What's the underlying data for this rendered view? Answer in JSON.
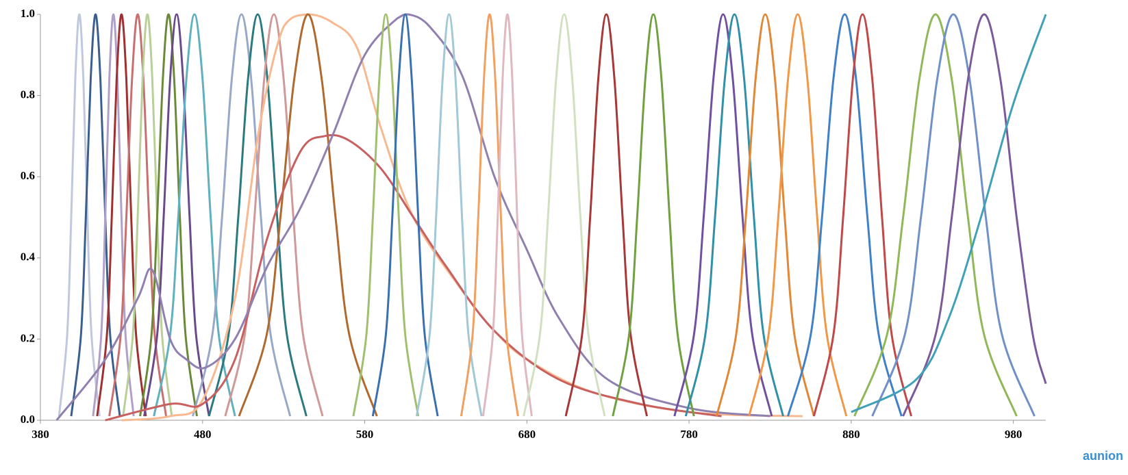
{
  "chart_data": {
    "type": "line",
    "xlim": [
      380,
      1000
    ],
    "xticks": [
      380,
      480,
      580,
      680,
      780,
      880,
      980
    ],
    "ylim": [
      0,
      1
    ],
    "yticks": [
      {
        "value": 0,
        "label": "0.0"
      },
      {
        "value": 0.2,
        "label": "0.2"
      },
      {
        "value": 0.4,
        "label": "0.4"
      },
      {
        "value": 0.6,
        "label": "0.6"
      },
      {
        "value": 0.8,
        "label": "0.8"
      },
      {
        "value": 1,
        "label": "1.0"
      }
    ],
    "grid": false,
    "watermark": "aunion",
    "series": [
      {
        "color": "#c0c8e0",
        "x": [
          391.5,
          396.5,
          399,
          401.5,
          404,
          406.5,
          409,
          411.5,
          416.5
        ],
        "values": [
          0.01,
          0.21,
          0.5,
          0.84,
          1,
          0.84,
          0.5,
          0.21,
          0.01
        ]
      },
      {
        "color": "#3a5f8f",
        "x": [
          399,
          405,
          408,
          411,
          414,
          417,
          420,
          423,
          429
        ],
        "values": [
          0.01,
          0.21,
          0.5,
          0.84,
          1,
          0.84,
          0.5,
          0.21,
          0.01
        ]
      },
      {
        "color": "#b0a0c8",
        "x": [
          412.5,
          417.5,
          420,
          422.5,
          425,
          427.5,
          430,
          432.5,
          437.5
        ],
        "values": [
          0.01,
          0.21,
          0.5,
          0.84,
          1,
          0.84,
          0.5,
          0.21,
          0.01
        ]
      },
      {
        "color": "#a03030",
        "x": [
          415,
          421,
          424,
          427,
          430,
          433,
          436,
          439,
          445
        ],
        "values": [
          0.01,
          0.21,
          0.5,
          0.84,
          1,
          0.84,
          0.5,
          0.21,
          0.01
        ]
      },
      {
        "color": "#c87070",
        "x": [
          422.5,
          429.5,
          433,
          436.5,
          440,
          443.5,
          447,
          450.5,
          457.5
        ],
        "values": [
          0.01,
          0.21,
          0.5,
          0.84,
          1,
          0.84,
          0.5,
          0.21,
          0.01
        ]
      },
      {
        "color": "#b8d098",
        "x": [
          431,
          437,
          440,
          443,
          446,
          449,
          452,
          455,
          461
        ],
        "values": [
          0.01,
          0.21,
          0.5,
          0.84,
          1,
          0.84,
          0.5,
          0.21,
          0.01
        ]
      },
      {
        "color": "#6a8a3a",
        "x": [
          441.5,
          448.5,
          452,
          455.5,
          459,
          462.5,
          466,
          469.5,
          476.5
        ],
        "values": [
          0.01,
          0.21,
          0.5,
          0.84,
          1,
          0.84,
          0.5,
          0.21,
          0.01
        ]
      },
      {
        "color": "#6a4a8a",
        "x": [
          444,
          452,
          456,
          460,
          464,
          468,
          472,
          476,
          484
        ],
        "values": [
          0.01,
          0.21,
          0.5,
          0.84,
          1,
          0.84,
          0.5,
          0.21,
          0.01
        ]
      },
      {
        "color": "#60b0c0",
        "x": [
          450,
          460,
          465,
          470,
          475,
          480,
          485,
          490,
          500
        ],
        "values": [
          0.01,
          0.21,
          0.5,
          0.84,
          1,
          0.84,
          0.5,
          0.21,
          0.01
        ]
      },
      {
        "color": "#98a8c8",
        "x": [
          474,
          486,
          492,
          498,
          504,
          510,
          516,
          522,
          534
        ],
        "values": [
          0.01,
          0.21,
          0.5,
          0.84,
          1,
          0.84,
          0.5,
          0.21,
          0.01
        ]
      },
      {
        "color": "#2a7a80",
        "x": [
          484,
          496,
          502,
          508,
          514,
          520,
          526,
          532,
          544
        ],
        "values": [
          0.01,
          0.21,
          0.5,
          0.84,
          1,
          0.84,
          0.5,
          0.21,
          0.01
        ]
      },
      {
        "color": "#d09898",
        "x": [
          494,
          506,
          512,
          518,
          524,
          530,
          536,
          542,
          554
        ],
        "values": [
          0.01,
          0.21,
          0.5,
          0.84,
          1,
          0.84,
          0.5,
          0.21,
          0.01
        ]
      },
      {
        "color": "#f8b890",
        "x": [
          430,
          460,
          480,
          500,
          515,
          530,
          545,
          560,
          575,
          590,
          610,
          640,
          660,
          680,
          720,
          780,
          850
        ],
        "values": [
          0,
          0.01,
          0.05,
          0.3,
          0.72,
          0.97,
          1.0,
          0.98,
          0.92,
          0.72,
          0.5,
          0.32,
          0.22,
          0.15,
          0.07,
          0.02,
          0.01
        ]
      },
      {
        "color": "#b06a30",
        "x": [
          502.5,
          519.5,
          528,
          536.5,
          545,
          553.5,
          562,
          570.5,
          587.5
        ],
        "values": [
          0.01,
          0.21,
          0.5,
          0.84,
          1,
          0.84,
          0.5,
          0.21,
          0.01
        ]
      },
      {
        "color": "#c86060",
        "x": [
          420,
          460,
          480,
          500,
          520,
          540,
          555,
          570,
          590,
          610,
          630,
          660,
          700,
          750,
          800
        ],
        "values": [
          0,
          0.04,
          0.04,
          0.15,
          0.45,
          0.66,
          0.7,
          0.69,
          0.62,
          0.5,
          0.38,
          0.22,
          0.1,
          0.04,
          0.01
        ]
      },
      {
        "color": "#9080b0",
        "x": [
          390,
          420,
          440,
          449,
          460,
          470,
          482,
          500,
          520,
          540,
          560,
          580,
          600,
          607,
          620,
          640,
          660,
          680,
          700,
          730,
          780,
          830
        ],
        "values": [
          0,
          0.15,
          0.3,
          0.37,
          0.2,
          0.15,
          0.13,
          0.2,
          0.38,
          0.52,
          0.7,
          0.9,
          0.99,
          1.0,
          0.97,
          0.85,
          0.6,
          0.42,
          0.25,
          0.1,
          0.03,
          0.01
        ]
      },
      {
        "color": "#a0c070",
        "x": [
          573,
          581,
          585,
          589,
          593,
          597,
          601,
          605,
          613
        ],
        "values": [
          0.01,
          0.21,
          0.5,
          0.84,
          1,
          0.84,
          0.5,
          0.21,
          0.01
        ]
      },
      {
        "color": "#3a70b0",
        "x": [
          585,
          593,
          597,
          601,
          605,
          609,
          613,
          617,
          625
        ],
        "values": [
          0.01,
          0.21,
          0.5,
          0.84,
          1,
          0.84,
          0.5,
          0.21,
          0.01
        ]
      },
      {
        "color": "#a0c8d8",
        "x": [
          612,
          620,
          624,
          628,
          632,
          636,
          640,
          644,
          652
        ],
        "values": [
          0.01,
          0.21,
          0.5,
          0.84,
          1,
          0.84,
          0.5,
          0.21,
          0.01
        ]
      },
      {
        "color": "#f0a060",
        "x": [
          639.5,
          646.5,
          650,
          653.5,
          657,
          660.5,
          664,
          667.5,
          674.5
        ],
        "values": [
          0.01,
          0.21,
          0.5,
          0.84,
          1,
          0.84,
          0.5,
          0.21,
          0.01
        ]
      },
      {
        "color": "#e0b8c0",
        "x": [
          653,
          659,
          662,
          665,
          668,
          671,
          674,
          677,
          683
        ],
        "values": [
          0.01,
          0.21,
          0.5,
          0.84,
          1,
          0.84,
          0.5,
          0.21,
          0.01
        ]
      },
      {
        "color": "#d0e0c0",
        "x": [
          678,
          688,
          693,
          698,
          703,
          708,
          713,
          718,
          728
        ],
        "values": [
          0.01,
          0.21,
          0.5,
          0.84,
          1,
          0.84,
          0.5,
          0.21,
          0.01
        ]
      },
      {
        "color": "#a83838",
        "x": [
          704,
          714,
          719,
          724,
          729,
          734,
          739,
          744,
          754
        ],
        "values": [
          0.01,
          0.21,
          0.5,
          0.84,
          1,
          0.84,
          0.5,
          0.21,
          0.01
        ]
      },
      {
        "color": "#70a040",
        "x": [
          733,
          743,
          748,
          753,
          758,
          763,
          768,
          773,
          783
        ],
        "values": [
          0.01,
          0.21,
          0.5,
          0.84,
          1,
          0.84,
          0.5,
          0.21,
          0.01
        ]
      },
      {
        "color": "#7050a0",
        "x": [
          771,
          783,
          789,
          795,
          801,
          807,
          813,
          819,
          831
        ],
        "values": [
          0.01,
          0.21,
          0.5,
          0.84,
          1,
          0.84,
          0.5,
          0.21,
          0.01
        ]
      },
      {
        "color": "#3090a8",
        "x": [
          778,
          790,
          796,
          802,
          808,
          814,
          820,
          826,
          838
        ],
        "values": [
          0.01,
          0.21,
          0.5,
          0.84,
          1,
          0.84,
          0.5,
          0.21,
          0.01
        ]
      },
      {
        "color": "#e08838",
        "x": [
          797,
          809,
          815,
          821,
          827,
          833,
          839,
          845,
          857
        ],
        "values": [
          0.01,
          0.21,
          0.5,
          0.84,
          1,
          0.84,
          0.5,
          0.21,
          0.01
        ]
      },
      {
        "color": "#f09848",
        "x": [
          817,
          829,
          835,
          841,
          847,
          853,
          859,
          865,
          877
        ],
        "values": [
          0.01,
          0.21,
          0.5,
          0.84,
          1,
          0.84,
          0.5,
          0.21,
          0.01
        ]
      },
      {
        "color": "#4080c8",
        "x": [
          841,
          855,
          862,
          869,
          876,
          883,
          890,
          897,
          911
        ],
        "values": [
          0.01,
          0.21,
          0.5,
          0.84,
          1,
          0.84,
          0.5,
          0.21,
          0.01
        ]
      },
      {
        "color": "#c04848",
        "x": [
          857,
          869,
          875,
          881,
          887,
          893,
          899,
          905,
          917
        ],
        "values": [
          0.01,
          0.21,
          0.5,
          0.84,
          1,
          0.84,
          0.5,
          0.21,
          0.01
        ]
      },
      {
        "color": "#90b858",
        "x": [
          882,
          902,
          912,
          922,
          932,
          942,
          952,
          962,
          982
        ],
        "values": [
          0.01,
          0.21,
          0.5,
          0.84,
          1,
          0.84,
          0.5,
          0.21,
          0.01
        ]
      },
      {
        "color": "#7090c8",
        "x": [
          893,
          913,
          923,
          933,
          943,
          953,
          963,
          973,
          993
        ],
        "values": [
          0.01,
          0.21,
          0.5,
          0.84,
          1,
          0.84,
          0.5,
          0.21,
          0.01
        ]
      },
      {
        "color": "#7a5a9a",
        "x": [
          912,
          932,
          942,
          952,
          962,
          972,
          982,
          992,
          1000
        ],
        "values": [
          0.01,
          0.21,
          0.5,
          0.84,
          1,
          0.84,
          0.5,
          0.21,
          0.09
        ]
      },
      {
        "color": "#40a0b8",
        "x": [
          880,
          920,
          940,
          960,
          980,
          1000
        ],
        "values": [
          0.02,
          0.1,
          0.25,
          0.5,
          0.78,
          1.0
        ]
      }
    ]
  }
}
